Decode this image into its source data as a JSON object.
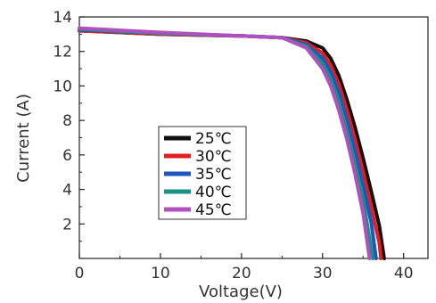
{
  "chart_data": {
    "type": "line",
    "title": "",
    "xlabel": "Voltage(V)",
    "ylabel": "Current (A)",
    "xlim": [
      0,
      43
    ],
    "ylim": [
      0,
      14
    ],
    "xticks": [
      0,
      10,
      20,
      30,
      40
    ],
    "yticks": [
      2,
      4,
      6,
      8,
      10,
      12,
      14
    ],
    "grid": false,
    "legend_position": "center",
    "series": [
      {
        "name": "25℃",
        "color": "#111111",
        "x": [
          0,
          10,
          20,
          25,
          28,
          30,
          31,
          32,
          33,
          34,
          35,
          36,
          37,
          37.6
        ],
        "y": [
          13.2,
          13.0,
          12.9,
          12.8,
          12.6,
          12.2,
          11.6,
          10.6,
          9.2,
          7.6,
          5.8,
          3.9,
          1.9,
          0
        ]
      },
      {
        "name": "30℃",
        "color": "#e02020",
        "x": [
          0,
          10,
          20,
          25,
          28,
          30,
          31,
          32,
          33,
          34,
          35,
          36,
          37,
          37.2
        ],
        "y": [
          13.2,
          13.0,
          12.9,
          12.8,
          12.5,
          11.9,
          11.2,
          10.1,
          8.6,
          6.9,
          5.0,
          3.0,
          0.9,
          0
        ]
      },
      {
        "name": "35℃",
        "color": "#2055c0",
        "x": [
          0,
          10,
          20,
          25,
          28,
          30,
          31,
          32,
          33,
          34,
          35,
          36,
          36.6
        ],
        "y": [
          13.25,
          13.05,
          12.9,
          12.8,
          12.4,
          11.6,
          10.8,
          9.6,
          8.0,
          6.2,
          4.2,
          2.1,
          0
        ]
      },
      {
        "name": "40℃",
        "color": "#1a9080",
        "x": [
          0,
          10,
          20,
          25,
          28,
          30,
          31,
          32,
          33,
          34,
          35,
          36.2
        ],
        "y": [
          13.3,
          13.05,
          12.9,
          12.8,
          12.3,
          11.3,
          10.4,
          9.1,
          7.4,
          5.5,
          3.4,
          0
        ]
      },
      {
        "name": "45℃",
        "color": "#b050c0",
        "x": [
          0,
          10,
          20,
          25,
          28,
          30,
          31,
          32,
          33,
          34,
          35,
          35.8
        ],
        "y": [
          13.35,
          13.1,
          12.9,
          12.8,
          12.2,
          11.0,
          10.0,
          8.6,
          6.9,
          4.9,
          2.6,
          0
        ]
      }
    ]
  }
}
